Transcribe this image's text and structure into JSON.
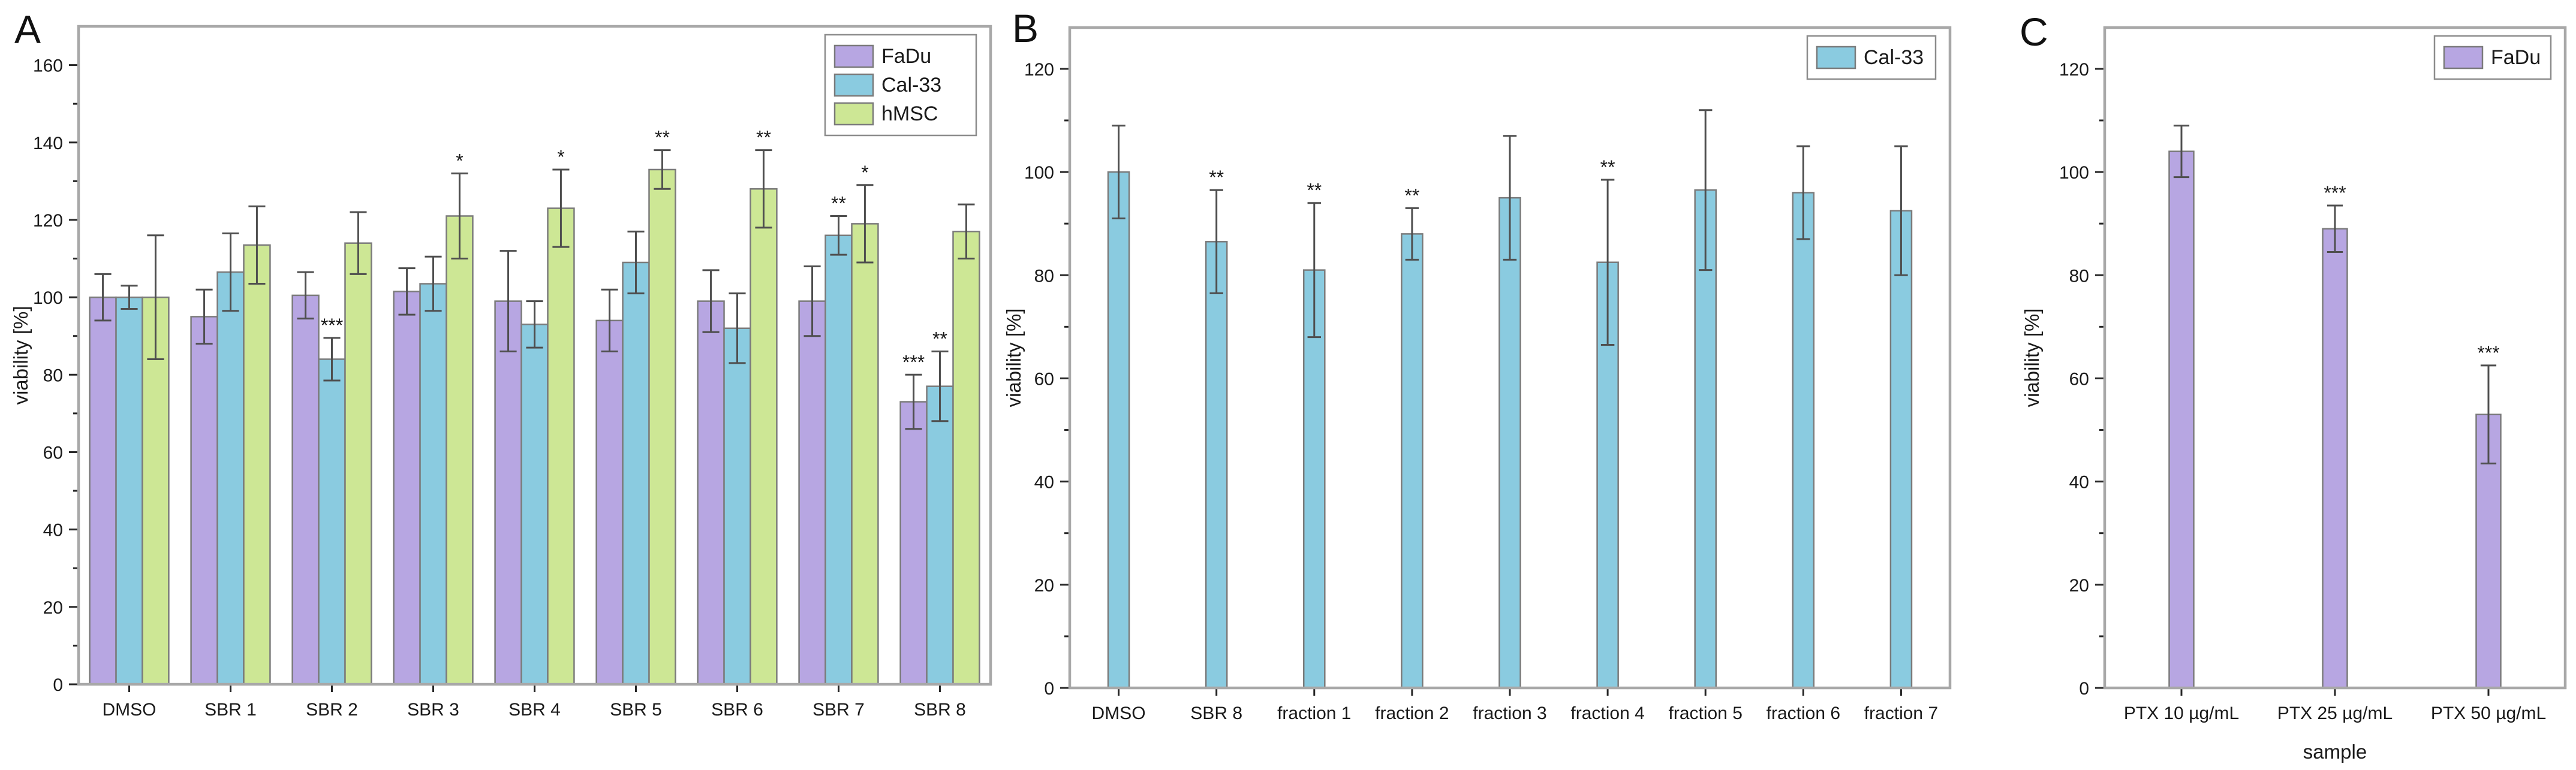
{
  "figure": {
    "background_color": "#ffffff",
    "frame_color": "#a8a8a8",
    "bar_border_color": "#7b7b7b",
    "error_bar_color": "#4f4f4f",
    "text_color": "#1a1a1a",
    "legend_border_color": "#8c8c8c",
    "series_colors": {
      "FaDu": "#b7a6e2",
      "Cal-33": "#8acbe0",
      "hMSC": "#cde795"
    }
  },
  "chart_data": [
    {
      "panel_label": "A",
      "type": "bar",
      "title": "",
      "xlabel": "",
      "ylabel": "viability [%]",
      "ylim": [
        0,
        170
      ],
      "ytick_step": 20,
      "ytick_label_max": 160,
      "minor_tick_step": 10,
      "grid": "off",
      "legend_position": "top-right",
      "categories": [
        "DMSO",
        "SBR 1",
        "SBR 2",
        "SBR 3",
        "SBR 4",
        "SBR 5",
        "SBR 6",
        "SBR 7",
        "SBR 8"
      ],
      "series": [
        {
          "name": "FaDu",
          "color": "#b7a6e2",
          "values": [
            100,
            95,
            100.5,
            101.5,
            99,
            94,
            99,
            99,
            73
          ],
          "errors": [
            6,
            7,
            6,
            6,
            13,
            8,
            8,
            9,
            7
          ],
          "sig": [
            "",
            "",
            "",
            "",
            "",
            "",
            "",
            "",
            "***"
          ]
        },
        {
          "name": "Cal-33",
          "color": "#8acbe0",
          "values": [
            100,
            106.5,
            84,
            103.5,
            93,
            109,
            92,
            116,
            77
          ],
          "errors": [
            3,
            10,
            5.5,
            7,
            6,
            8,
            9,
            5,
            9
          ],
          "sig": [
            "",
            "",
            "***",
            "",
            "",
            "",
            "",
            "**",
            "**"
          ]
        },
        {
          "name": "hMSC",
          "color": "#cde795",
          "values": [
            100,
            113.5,
            114,
            121,
            123,
            133,
            128,
            119,
            117
          ],
          "errors": [
            16,
            10,
            8,
            11,
            10,
            5,
            10,
            10,
            7
          ],
          "sig": [
            "",
            "",
            "",
            "*",
            "*",
            "**",
            "**",
            "*",
            ""
          ]
        }
      ]
    },
    {
      "panel_label": "B",
      "type": "bar",
      "title": "",
      "xlabel": "",
      "ylabel": "viability [%]",
      "ylim": [
        0,
        128
      ],
      "ytick_step": 20,
      "ytick_label_max": 120,
      "minor_tick_step": 10,
      "grid": "off",
      "legend_position": "top-right",
      "categories": [
        "DMSO",
        "SBR 8",
        "fraction 1",
        "fraction 2",
        "fraction 3",
        "fraction 4",
        "fraction 5",
        "fraction 6",
        "fraction 7"
      ],
      "series": [
        {
          "name": "Cal-33",
          "color": "#8acbe0",
          "values": [
            100,
            86.5,
            81,
            88,
            95,
            82.5,
            96.5,
            96,
            92.5
          ],
          "errors": [
            9,
            10,
            13,
            5,
            12,
            16,
            15.5,
            9,
            12.5
          ],
          "sig": [
            "",
            "**",
            "**",
            "**",
            "",
            "**",
            "",
            "",
            ""
          ]
        }
      ]
    },
    {
      "panel_label": "C",
      "type": "bar",
      "title": "",
      "xlabel": "sample",
      "ylabel": "viability [%]",
      "ylim": [
        0,
        128
      ],
      "ytick_step": 20,
      "ytick_label_max": 120,
      "minor_tick_step": 10,
      "grid": "off",
      "legend_position": "top-right",
      "categories": [
        "PTX 10 µg/mL",
        "PTX 25 µg/mL",
        "PTX 50 µg/mL"
      ],
      "series": [
        {
          "name": "FaDu",
          "color": "#b7a6e2",
          "values": [
            104,
            89,
            53
          ],
          "errors": [
            5,
            4.5,
            9.5
          ],
          "sig": [
            "",
            "***",
            "***"
          ]
        }
      ]
    }
  ]
}
